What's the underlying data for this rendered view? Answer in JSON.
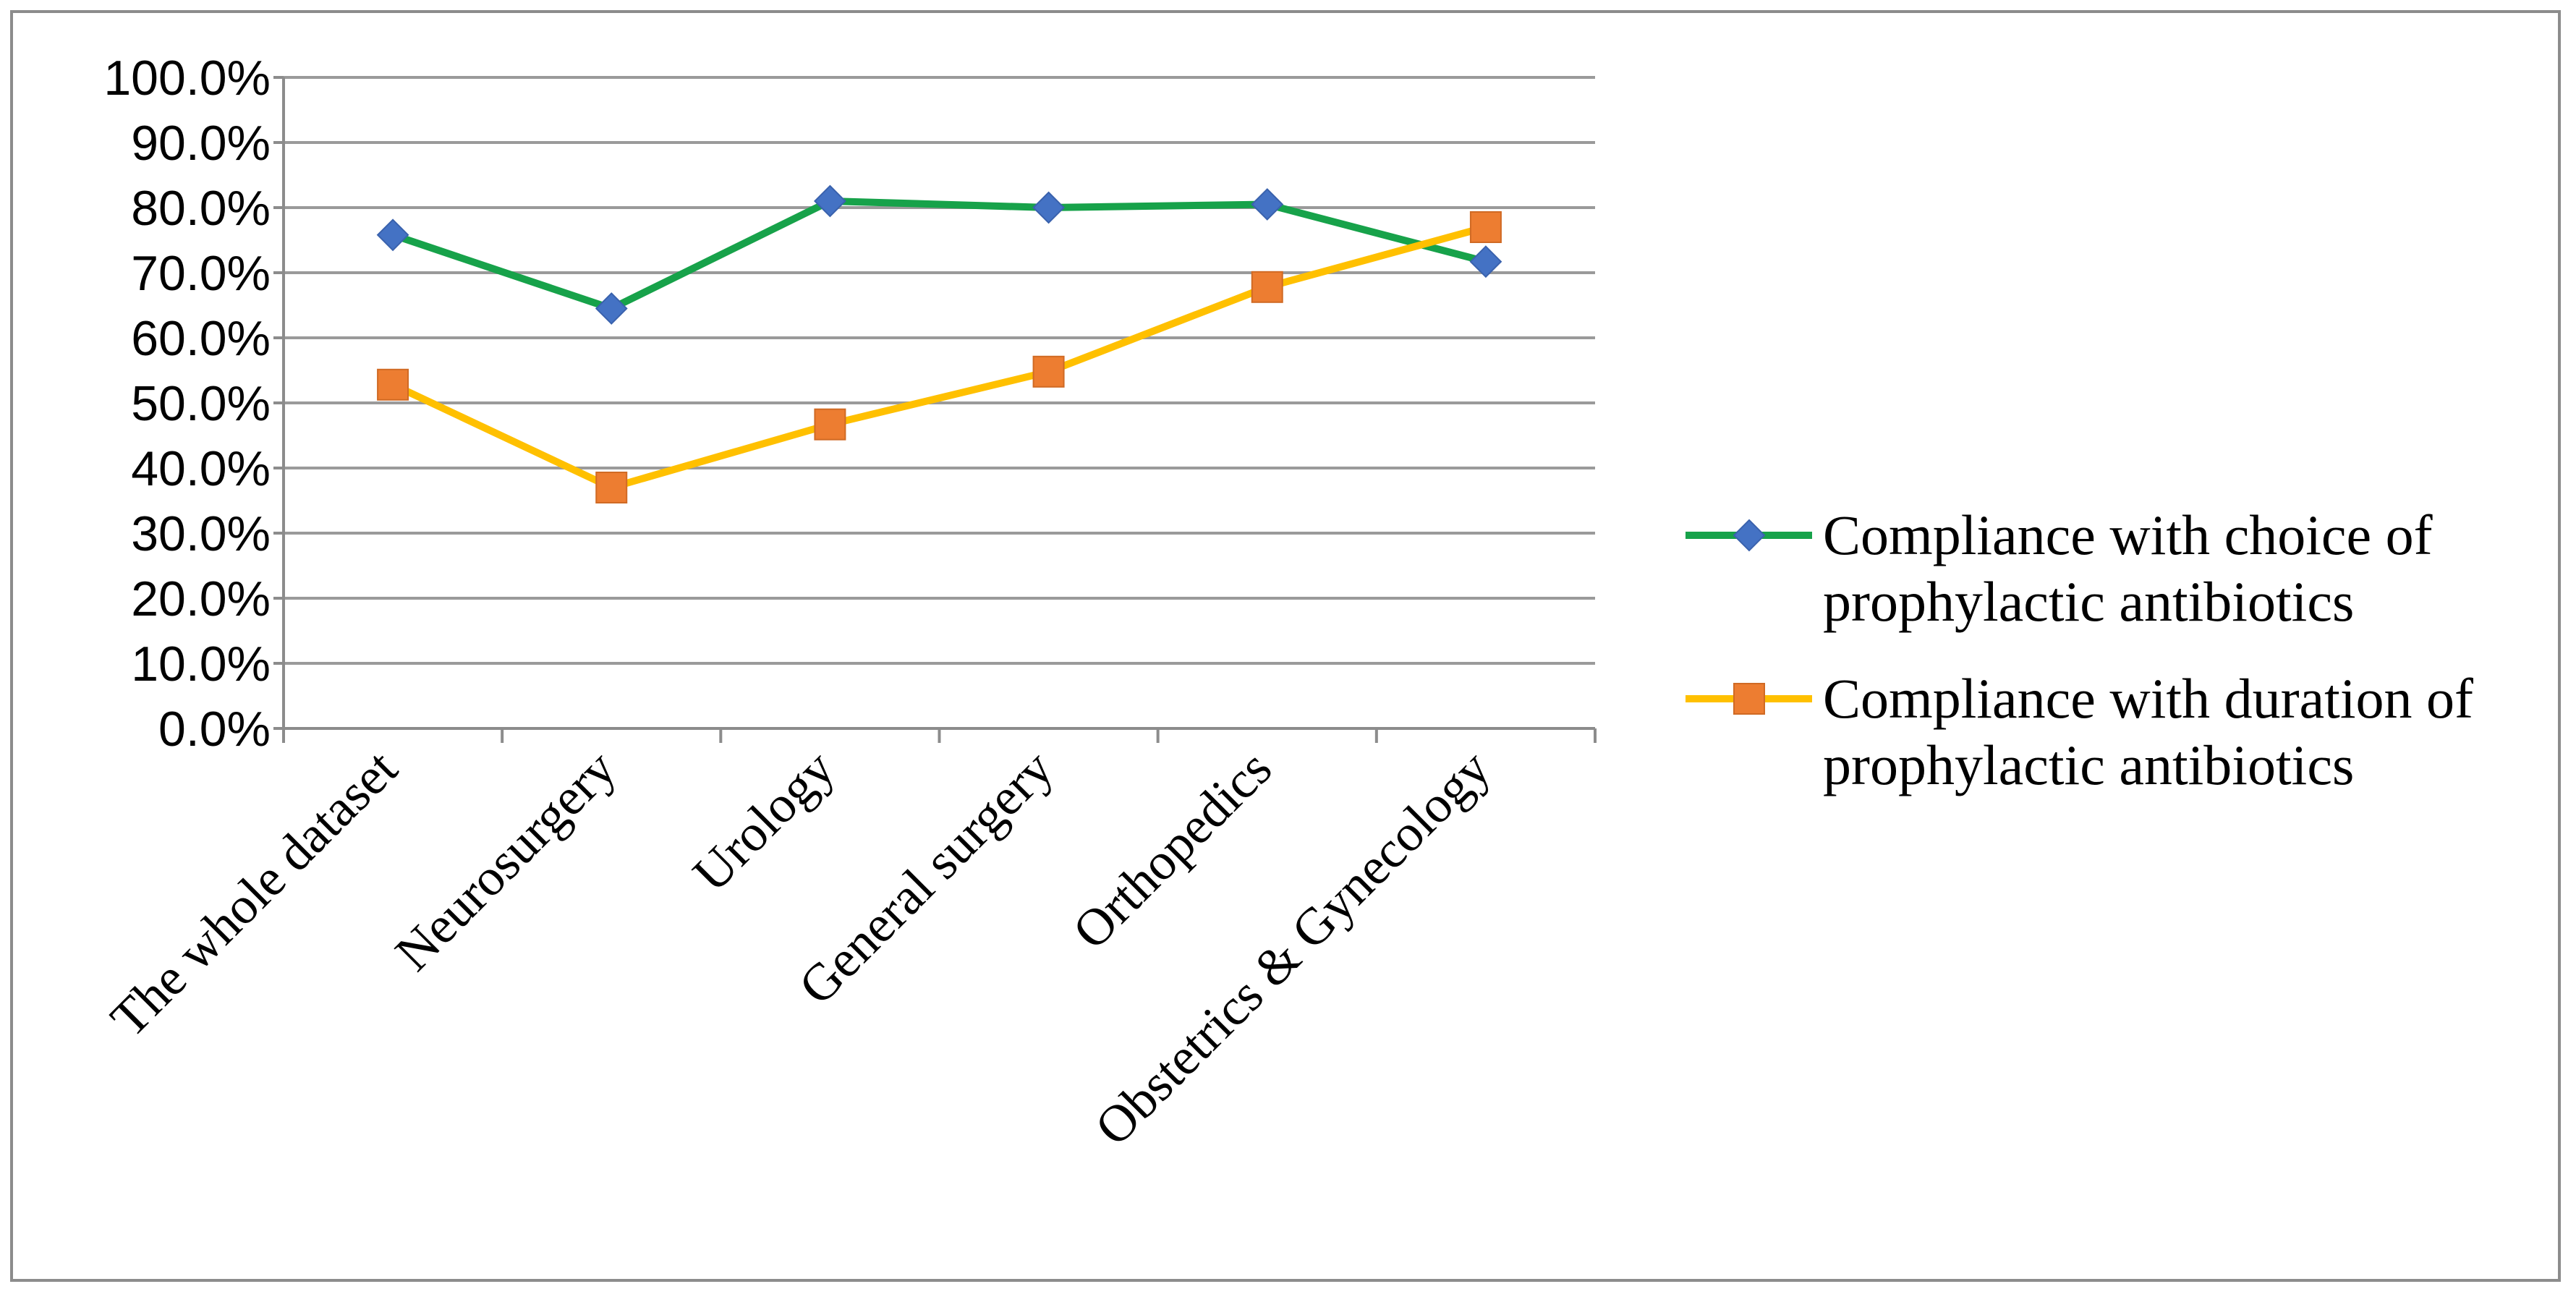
{
  "chart_data": {
    "type": "line",
    "title": "",
    "xlabel": "",
    "ylabel": "",
    "ylim": [
      0,
      100
    ],
    "ytick_step": 10,
    "ytick_format": "percent_1dp",
    "grid": true,
    "legend_position": "right",
    "categories": [
      "The whole dataset",
      "Neurosurgery",
      "Urology",
      "General surgery",
      "Orthopedics",
      "Obstetrics & Gynecology"
    ],
    "series": [
      {
        "name": "Compliance with choice of prophylactic antibiotics",
        "legend_lines": [
          "Compliance with choice of",
          "prophylactic antibiotics"
        ],
        "values": [
          75.8,
          64.5,
          81.0,
          80.0,
          80.5,
          71.7
        ],
        "line_color": "#17a24a",
        "marker": "diamond",
        "marker_color": "#4472c4"
      },
      {
        "name": "Compliance with duration of prophylactic antibiotics",
        "legend_lines": [
          "Compliance with duration of",
          "prophylactic antibiotics"
        ],
        "values": [
          52.8,
          37.0,
          46.7,
          54.8,
          67.8,
          77.0
        ],
        "line_color": "#ffc000",
        "marker": "square",
        "marker_color": "#ed7d31"
      }
    ]
  }
}
